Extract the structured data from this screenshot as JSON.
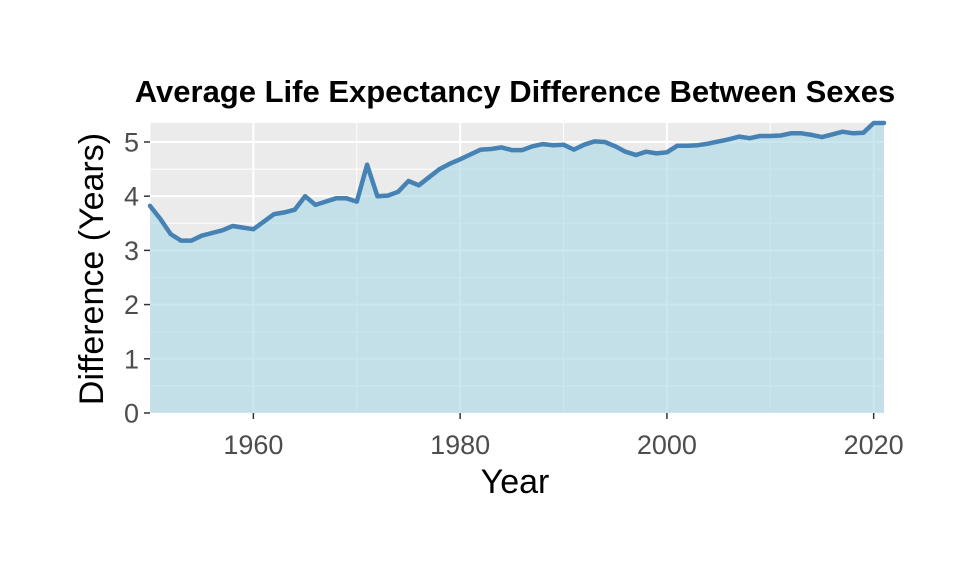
{
  "chart_data": {
    "type": "area",
    "title": "Average Life Expectancy Difference Between Sexes",
    "xlabel": "Year",
    "ylabel": "Difference (Years)",
    "xlim": [
      1950,
      2021
    ],
    "ylim": [
      0,
      5.35
    ],
    "x_ticks": [
      1960,
      1980,
      2000,
      2020
    ],
    "y_ticks": [
      0,
      1,
      2,
      3,
      4,
      5
    ],
    "grid": true,
    "legend": "none",
    "colors": {
      "panel_background": "#ebebeb",
      "gridline": "#ffffff",
      "area_fill": "#add8e6",
      "line": "#4682b4"
    },
    "series": [
      {
        "x": [
          1950,
          1951,
          1952,
          1953,
          1954,
          1955,
          1956,
          1957,
          1958,
          1959,
          1960,
          1961,
          1962,
          1963,
          1964,
          1965,
          1966,
          1967,
          1968,
          1969,
          1970,
          1971,
          1972,
          1973,
          1974,
          1975,
          1976,
          1977,
          1978,
          1979,
          1980,
          1981,
          1982,
          1983,
          1984,
          1985,
          1986,
          1987,
          1988,
          1989,
          1990,
          1991,
          1992,
          1993,
          1994,
          1995,
          1996,
          1997,
          1998,
          1999,
          2000,
          2001,
          2002,
          2003,
          2004,
          2005,
          2006,
          2007,
          2008,
          2009,
          2010,
          2011,
          2012,
          2013,
          2014,
          2015,
          2016,
          2017,
          2018,
          2019,
          2020,
          2021
        ],
        "values": [
          3.82,
          3.58,
          3.3,
          3.18,
          3.18,
          3.27,
          3.32,
          3.37,
          3.45,
          3.42,
          3.39,
          3.53,
          3.67,
          3.7,
          3.75,
          4.0,
          3.84,
          3.9,
          3.96,
          3.96,
          3.9,
          4.58,
          4.0,
          4.01,
          4.08,
          4.28,
          4.2,
          4.35,
          4.5,
          4.6,
          4.68,
          4.77,
          4.86,
          4.87,
          4.9,
          4.85,
          4.85,
          4.92,
          4.96,
          4.94,
          4.95,
          4.86,
          4.95,
          5.01,
          5.0,
          4.92,
          4.82,
          4.76,
          4.82,
          4.79,
          4.81,
          4.93,
          4.93,
          4.94,
          4.97,
          5.01,
          5.05,
          5.1,
          5.07,
          5.11,
          5.11,
          5.12,
          5.16,
          5.16,
          5.13,
          5.09,
          5.14,
          5.19,
          5.16,
          5.17,
          5.35,
          5.35
        ]
      }
    ]
  }
}
